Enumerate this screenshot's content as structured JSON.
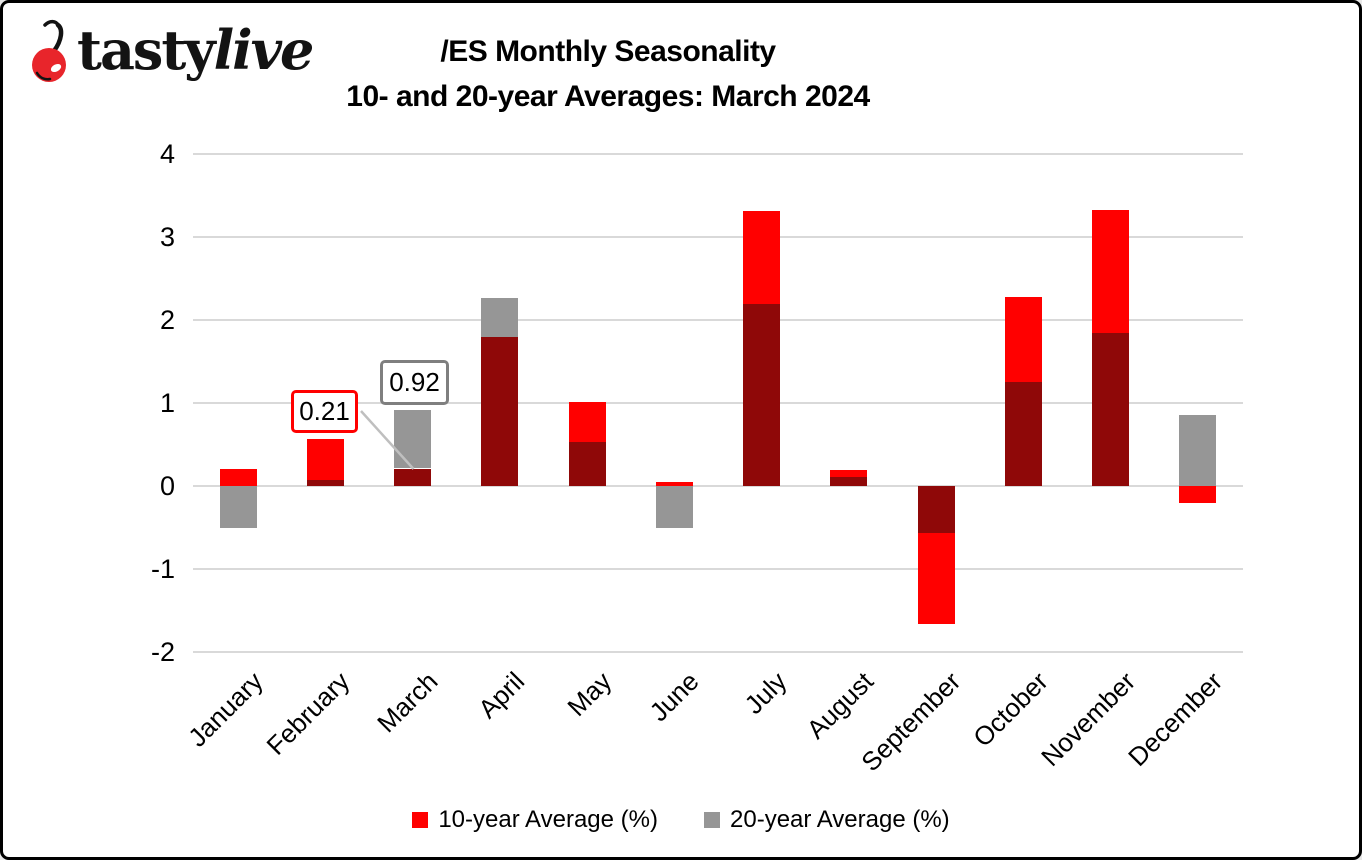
{
  "logo": {
    "brand_part1": "tasty",
    "brand_part2": "live",
    "cherry_color": "#e8252b"
  },
  "title": {
    "line1": "/ES Monthly Seasonality",
    "line2": "10- and 20-year Averages: March 2024"
  },
  "chart_data": {
    "type": "bar",
    "categories": [
      "January",
      "February",
      "March",
      "April",
      "May",
      "June",
      "July",
      "August",
      "September",
      "October",
      "November",
      "December"
    ],
    "series": [
      {
        "name": "10-year Average (%)",
        "color": "#ff0000",
        "values": [
          0.2,
          0.57,
          0.21,
          1.8,
          1.01,
          0.05,
          3.31,
          0.19,
          -1.66,
          2.28,
          3.33,
          -0.21
        ]
      },
      {
        "name": "20-year Average (%)",
        "color": "#969696",
        "values": [
          -0.5,
          0.07,
          0.92,
          2.26,
          0.53,
          -0.5,
          2.19,
          0.11,
          -0.57,
          1.25,
          1.84,
          0.86
        ]
      }
    ],
    "overlap_color": "#8f0808",
    "ylim": [
      -2,
      4
    ],
    "yticks": [
      4,
      3,
      2,
      1,
      0,
      -1,
      -2
    ],
    "grid": true,
    "gridline_color": "#d9d9d9",
    "legend_position": "bottom",
    "annotations": [
      {
        "label": "0.21",
        "month": "March",
        "series": "10-year Average (%)",
        "border_color": "#ff0000"
      },
      {
        "label": "0.92",
        "month": "March",
        "series": "20-year Average (%)",
        "border_color": "#7f7f7f"
      }
    ]
  }
}
